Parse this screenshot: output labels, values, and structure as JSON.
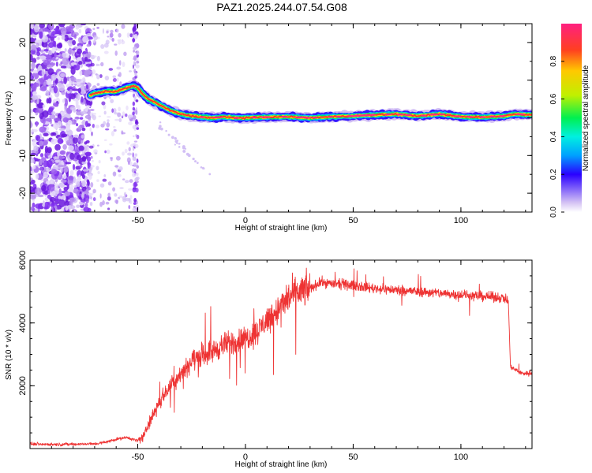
{
  "title": "PAZ1.2025.244.07.54.G08",
  "colors": {
    "signal": "#ee3333",
    "scatter": "#8a33ee",
    "scatter_dark": "#6a1fcf",
    "axes": "#000000"
  },
  "chart_data": [
    {
      "type": "heatmap",
      "title": "",
      "xlabel": "Height of straight line (km)",
      "ylabel": "Frequency (Hz)",
      "xlim": [
        -100,
        133
      ],
      "ylim": [
        -25,
        25
      ],
      "xticks": [
        -50,
        0,
        50,
        100
      ],
      "yticks": [
        -20,
        -10,
        0,
        10,
        20
      ],
      "ridge": {
        "x": [
          -72,
          -70,
          -65,
          -60,
          -55,
          -52,
          -50,
          -48,
          -45,
          -40,
          -35,
          -30,
          -25,
          -20,
          -15,
          -10,
          -5,
          0,
          10,
          20,
          30,
          40,
          50,
          60,
          70,
          80,
          90,
          100,
          110,
          120,
          125,
          133
        ],
        "y": [
          6,
          6.5,
          7,
          7,
          8,
          8.5,
          8,
          6.5,
          5,
          3.5,
          2,
          1,
          0.5,
          0.2,
          0,
          0.3,
          0,
          0,
          0.2,
          0.3,
          0,
          0.3,
          0.5,
          0.8,
          1,
          0.5,
          1,
          0.3,
          0.2,
          0.5,
          1,
          0.8
        ]
      },
      "colorbar": {
        "label": "Normalized spectral amplitude",
        "range": [
          0,
          1
        ],
        "ticks": [
          "0.0",
          "0.2",
          "0.4",
          "0.6",
          "0.8"
        ],
        "tick_values": [
          0,
          0.2,
          0.4,
          0.6,
          0.8
        ]
      }
    },
    {
      "type": "line",
      "title": "",
      "xlabel": "Height of straight line (km)",
      "ylabel": "SNR (10 * v/v)",
      "xlim": [
        -100,
        133
      ],
      "ylim": [
        0,
        6000
      ],
      "xticks": [
        -50,
        0,
        50,
        100
      ],
      "yticks": [
        2000,
        4000,
        6000
      ],
      "envelope": {
        "x": [
          -100,
          -90,
          -80,
          -70,
          -65,
          -60,
          -55,
          -50,
          -47,
          -45,
          -40,
          -35,
          -30,
          -25,
          -20,
          -15,
          -10,
          -5,
          0,
          5,
          10,
          15,
          20,
          25,
          30,
          35,
          40,
          50,
          60,
          70,
          80,
          90,
          100,
          110,
          120,
          122,
          123,
          128,
          133
        ],
        "y": [
          150,
          130,
          140,
          150,
          200,
          300,
          350,
          250,
          400,
          800,
          1500,
          2000,
          2400,
          2800,
          3000,
          3100,
          3300,
          3400,
          3500,
          3700,
          4100,
          4400,
          4800,
          5000,
          5100,
          5300,
          5250,
          5200,
          5100,
          5050,
          5000,
          4950,
          4900,
          4850,
          4800,
          4700,
          2600,
          2400,
          2400
        ]
      }
    }
  ]
}
